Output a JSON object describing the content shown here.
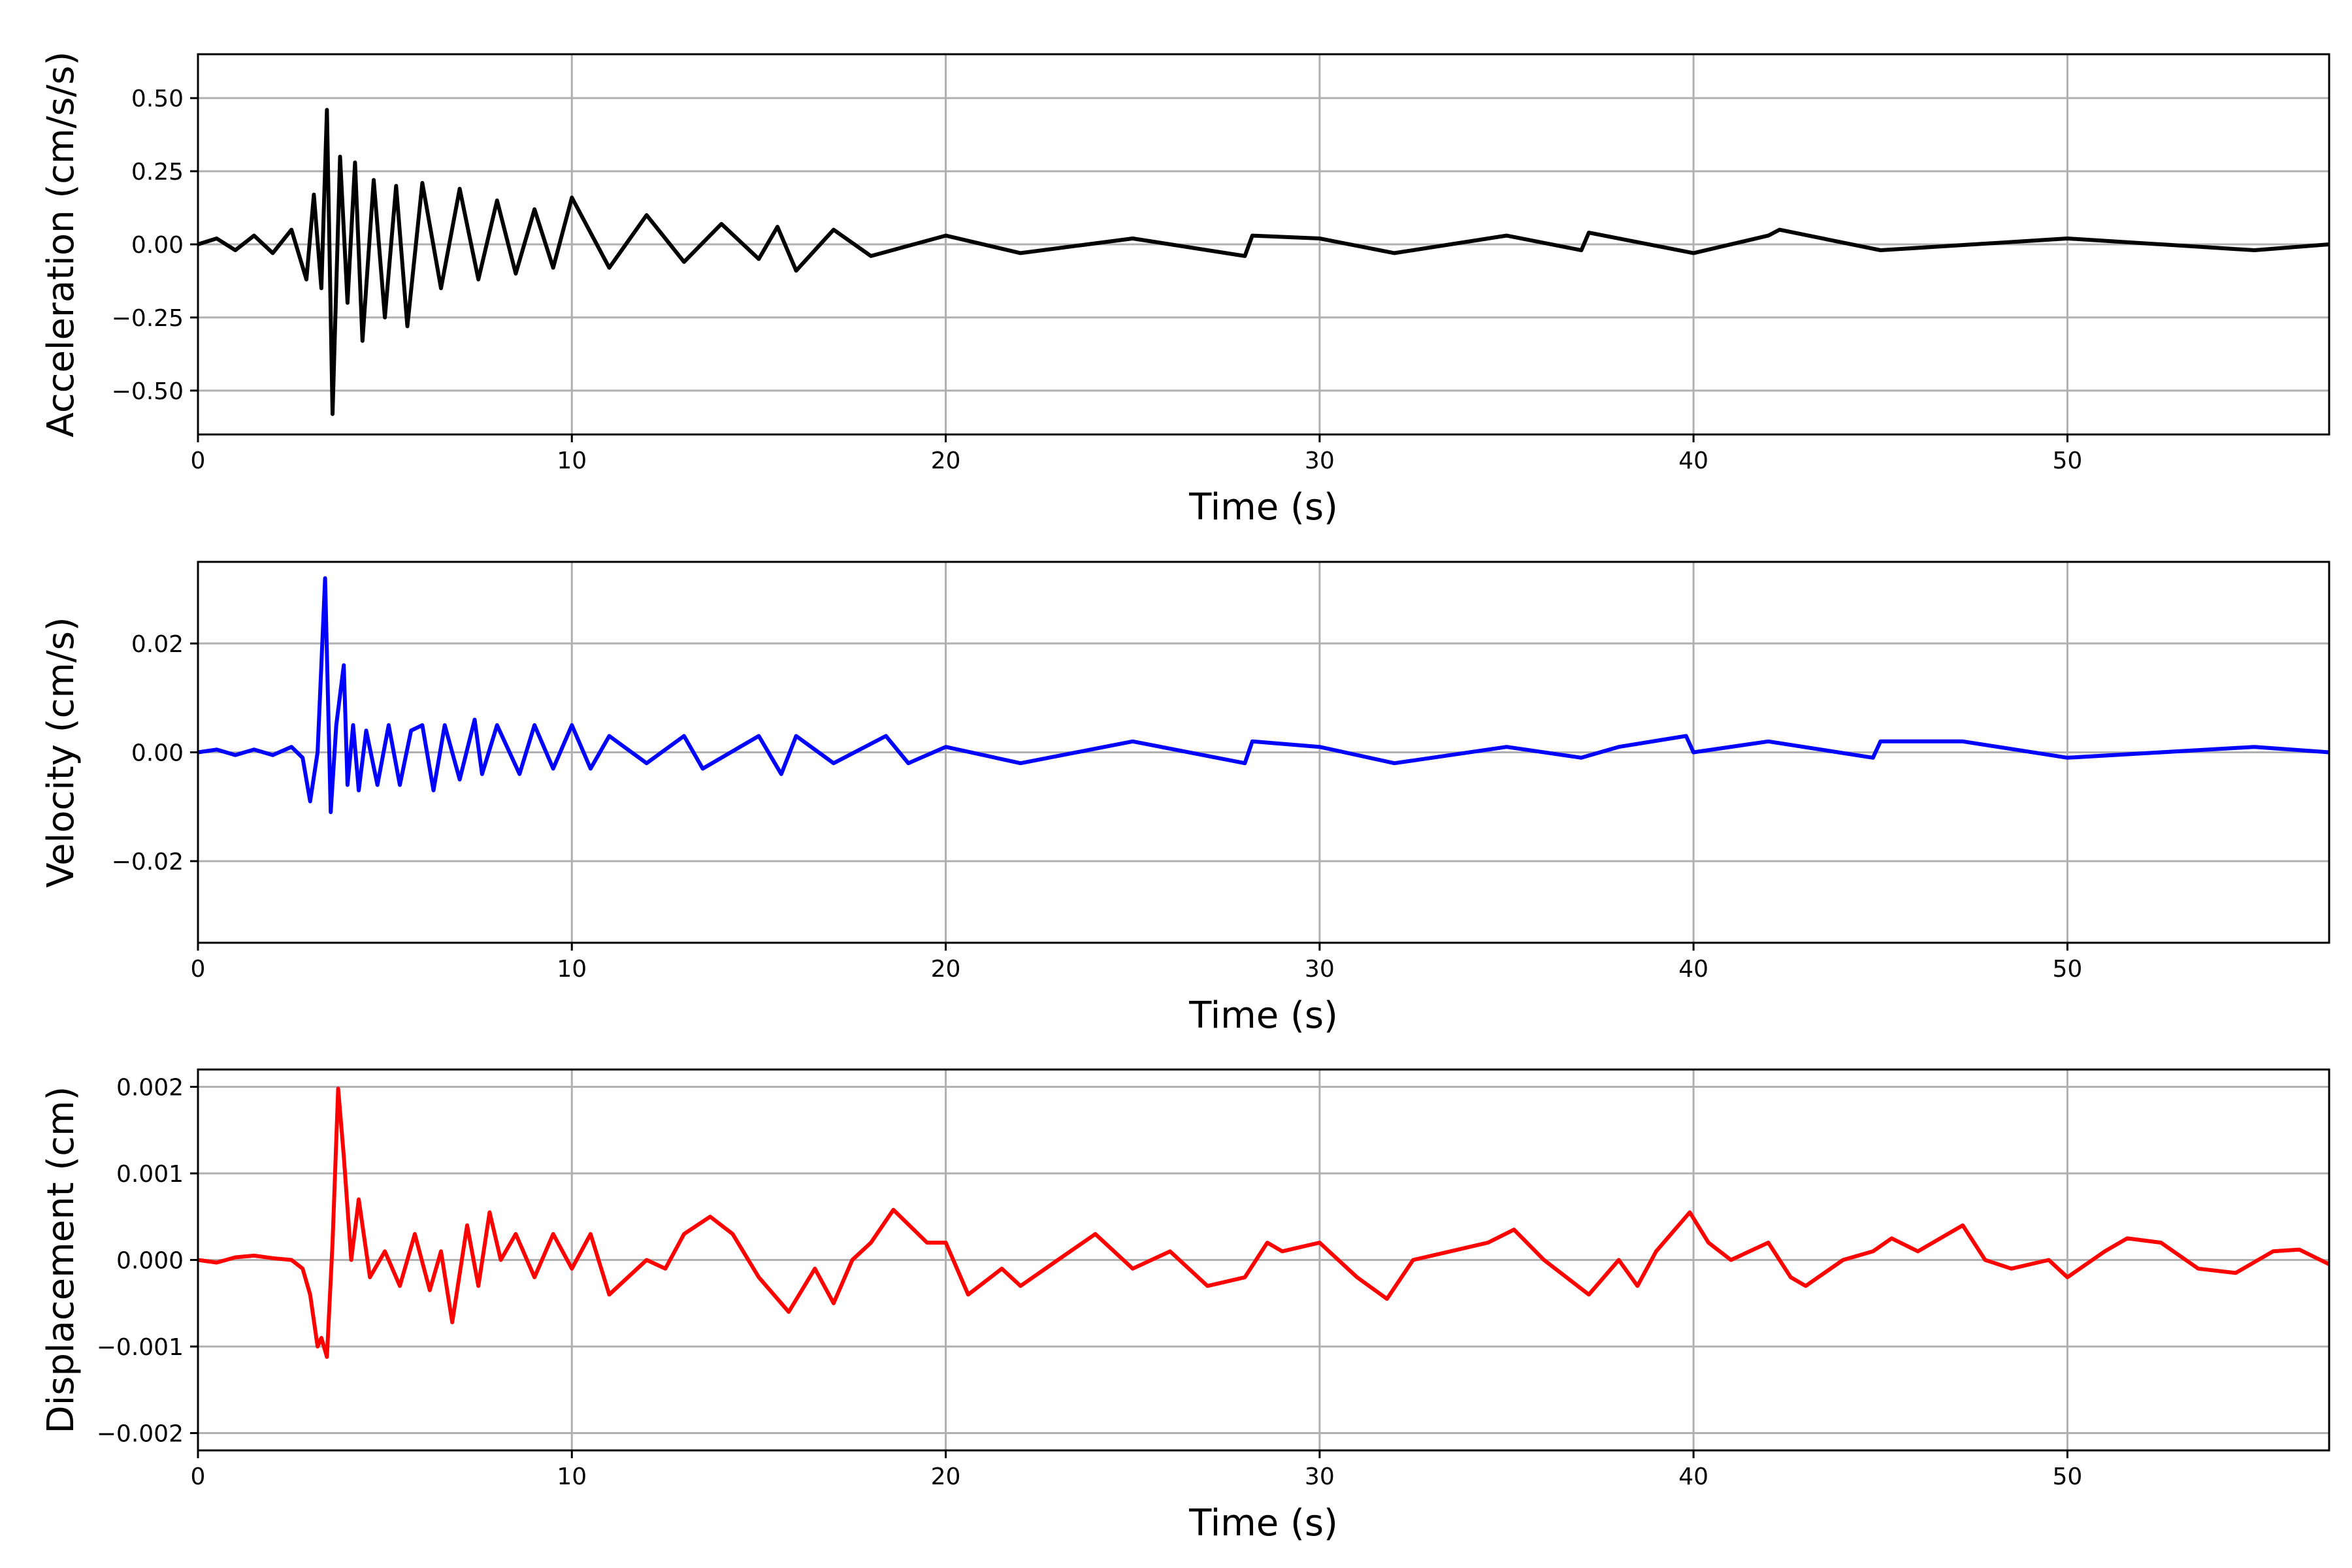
{
  "chart_data": [
    {
      "type": "line",
      "xlabel": "Time (s)",
      "ylabel": "Acceleration (cm/s/s)",
      "xlim": [
        0,
        57
      ],
      "ylim": [
        -0.65,
        0.65
      ],
      "xticks": [
        0,
        10,
        20,
        30,
        40,
        50
      ],
      "xtick_labels": [
        "0",
        "10",
        "20",
        "30",
        "40",
        "50"
      ],
      "yticks": [
        0.5,
        0.25,
        0.0,
        -0.25,
        -0.5
      ],
      "ytick_labels": [
        "0.50",
        "0.25",
        "0.00",
        "−0.25",
        "−0.50"
      ],
      "grid": true,
      "color": "#000000",
      "series": [
        {
          "x": [
            0,
            0.5,
            1.0,
            1.5,
            2.0,
            2.5,
            2.9,
            3.1,
            3.3,
            3.45,
            3.6,
            3.8,
            4.0,
            4.2,
            4.4,
            4.7,
            5.0,
            5.3,
            5.6,
            6.0,
            6.5,
            7.0,
            7.5,
            8.0,
            8.5,
            9.0,
            9.5,
            10.0,
            11.0,
            12.0,
            13.0,
            14.0,
            15.0,
            15.5,
            16.0,
            17.0,
            18.0,
            20.0,
            22.0,
            25.0,
            28.0,
            28.2,
            30.0,
            32.0,
            35.0,
            37.0,
            37.2,
            40.0,
            42.0,
            42.3,
            45.0,
            50.0,
            55.0,
            57.0
          ],
          "y": [
            0.0,
            0.02,
            -0.02,
            0.03,
            -0.03,
            0.05,
            -0.12,
            0.17,
            -0.15,
            0.46,
            -0.58,
            0.3,
            -0.2,
            0.28,
            -0.33,
            0.22,
            -0.25,
            0.2,
            -0.28,
            0.21,
            -0.15,
            0.19,
            -0.12,
            0.15,
            -0.1,
            0.12,
            -0.08,
            0.16,
            -0.08,
            0.1,
            -0.06,
            0.07,
            -0.05,
            0.06,
            -0.09,
            0.05,
            -0.04,
            0.03,
            -0.03,
            0.02,
            -0.04,
            0.03,
            0.02,
            -0.03,
            0.03,
            -0.02,
            0.04,
            -0.03,
            0.03,
            0.05,
            -0.02,
            0.02,
            -0.02,
            0.0
          ]
        }
      ]
    },
    {
      "type": "line",
      "xlabel": "Time (s)",
      "ylabel": "Velocity (cm/s)",
      "xlim": [
        0,
        57
      ],
      "ylim": [
        -0.035,
        0.035
      ],
      "xticks": [
        0,
        10,
        20,
        30,
        40,
        50
      ],
      "xtick_labels": [
        "0",
        "10",
        "20",
        "30",
        "40",
        "50"
      ],
      "yticks": [
        0.02,
        0.0,
        -0.02
      ],
      "ytick_labels": [
        "0.02",
        "0.00",
        "−0.02"
      ],
      "grid": true,
      "color": "#0000ff",
      "series": [
        {
          "x": [
            0,
            0.5,
            1.0,
            1.5,
            2.0,
            2.5,
            2.8,
            3.0,
            3.2,
            3.4,
            3.55,
            3.7,
            3.9,
            4.0,
            4.15,
            4.3,
            4.5,
            4.8,
            5.1,
            5.4,
            5.7,
            6.0,
            6.3,
            6.6,
            7.0,
            7.4,
            7.6,
            8.0,
            8.6,
            9.0,
            9.5,
            10.0,
            10.5,
            11.0,
            12.0,
            13.0,
            13.5,
            15.0,
            15.6,
            16.0,
            17.0,
            18.4,
            19.0,
            20.0,
            22.0,
            25.0,
            28.0,
            28.2,
            30.0,
            32.0,
            35.0,
            37.0,
            38.0,
            39.8,
            40.0,
            42.0,
            44.8,
            45.0,
            47.2,
            50.0,
            55.0,
            57.0
          ],
          "y": [
            0.0,
            0.0005,
            -0.0005,
            0.0005,
            -0.0005,
            0.001,
            -0.001,
            -0.009,
            0.0,
            0.032,
            -0.011,
            0.005,
            0.016,
            -0.006,
            0.005,
            -0.007,
            0.004,
            -0.006,
            0.005,
            -0.006,
            0.004,
            0.005,
            -0.007,
            0.005,
            -0.005,
            0.006,
            -0.004,
            0.005,
            -0.004,
            0.005,
            -0.003,
            0.005,
            -0.003,
            0.003,
            -0.002,
            0.003,
            -0.003,
            0.003,
            -0.004,
            0.003,
            -0.002,
            0.003,
            -0.002,
            0.001,
            -0.002,
            0.002,
            -0.002,
            0.002,
            0.001,
            -0.002,
            0.001,
            -0.001,
            0.001,
            0.003,
            0.0,
            0.002,
            -0.001,
            0.002,
            0.002,
            -0.001,
            0.001,
            0.0
          ]
        }
      ]
    },
    {
      "type": "line",
      "xlabel": "Time (s)",
      "ylabel": "Displacement (cm)",
      "xlim": [
        0,
        57
      ],
      "ylim": [
        -0.0022,
        0.0022
      ],
      "xticks": [
        0,
        10,
        20,
        30,
        40,
        50
      ],
      "xtick_labels": [
        "0",
        "10",
        "20",
        "30",
        "40",
        "50"
      ],
      "yticks": [
        0.002,
        0.001,
        0.0,
        -0.001,
        -0.002
      ],
      "ytick_labels": [
        "0.002",
        "0.001",
        "0.000",
        "−0.001",
        "−0.002"
      ],
      "grid": true,
      "color": "#ff0000",
      "series": [
        {
          "x": [
            0,
            0.5,
            1.0,
            1.5,
            2.0,
            2.5,
            2.8,
            3.0,
            3.2,
            3.3,
            3.45,
            3.6,
            3.75,
            3.9,
            4.1,
            4.3,
            4.6,
            5.0,
            5.4,
            5.8,
            6.2,
            6.5,
            6.8,
            7.2,
            7.5,
            7.8,
            8.1,
            8.5,
            9.0,
            9.5,
            10.0,
            10.5,
            11.0,
            12.0,
            12.5,
            13.0,
            13.7,
            14.3,
            15.0,
            15.8,
            16.5,
            17.0,
            17.5,
            18.0,
            18.6,
            19.5,
            20.0,
            20.6,
            21.5,
            22.0,
            23.0,
            24.0,
            25.0,
            26.0,
            27.0,
            28.0,
            28.6,
            29.0,
            30.0,
            31.0,
            31.8,
            32.5,
            33.5,
            34.5,
            35.2,
            36.0,
            37.2,
            38.0,
            38.5,
            39.0,
            39.9,
            40.4,
            41.0,
            42.0,
            42.6,
            43.0,
            44.0,
            44.8,
            45.3,
            46.0,
            47.2,
            47.8,
            48.5,
            49.5,
            50.0,
            51.0,
            51.6,
            52.5,
            53.5,
            54.5,
            55.5,
            56.2,
            57.0
          ],
          "y": [
            0.0,
            -3e-05,
            3e-05,
            5e-05,
            2e-05,
            0.0,
            -0.0001,
            -0.0004,
            -0.001,
            -0.0009,
            -0.00112,
            0.0002,
            0.00198,
            0.0012,
            0.0,
            0.0007,
            -0.0002,
            0.0001,
            -0.0003,
            0.0003,
            -0.00035,
            0.0001,
            -0.00072,
            0.0004,
            -0.0003,
            0.00055,
            0.0,
            0.0003,
            -0.0002,
            0.0003,
            -0.0001,
            0.0003,
            -0.0004,
            0.0,
            -0.0001,
            0.0003,
            0.0005,
            0.0003,
            -0.0002,
            -0.0006,
            -0.0001,
            -0.0005,
            0.0,
            0.0002,
            0.00058,
            0.0002,
            0.0002,
            -0.0004,
            -0.0001,
            -0.0003,
            0.0,
            0.0003,
            -0.0001,
            0.0001,
            -0.0003,
            -0.0002,
            0.0002,
            0.0001,
            0.0002,
            -0.0002,
            -0.00045,
            0.0,
            0.0001,
            0.0002,
            0.00035,
            0.0,
            -0.0004,
            0.0,
            -0.0003,
            0.0001,
            0.00055,
            0.0002,
            0.0,
            0.0002,
            -0.0002,
            -0.0003,
            0.0,
            0.0001,
            0.00025,
            0.0001,
            0.0004,
            0.0,
            -0.0001,
            0.0,
            -0.0002,
            0.0001,
            0.00025,
            0.0002,
            -0.0001,
            -0.00015,
            0.0001,
            0.00012,
            -5e-05
          ]
        }
      ]
    }
  ]
}
